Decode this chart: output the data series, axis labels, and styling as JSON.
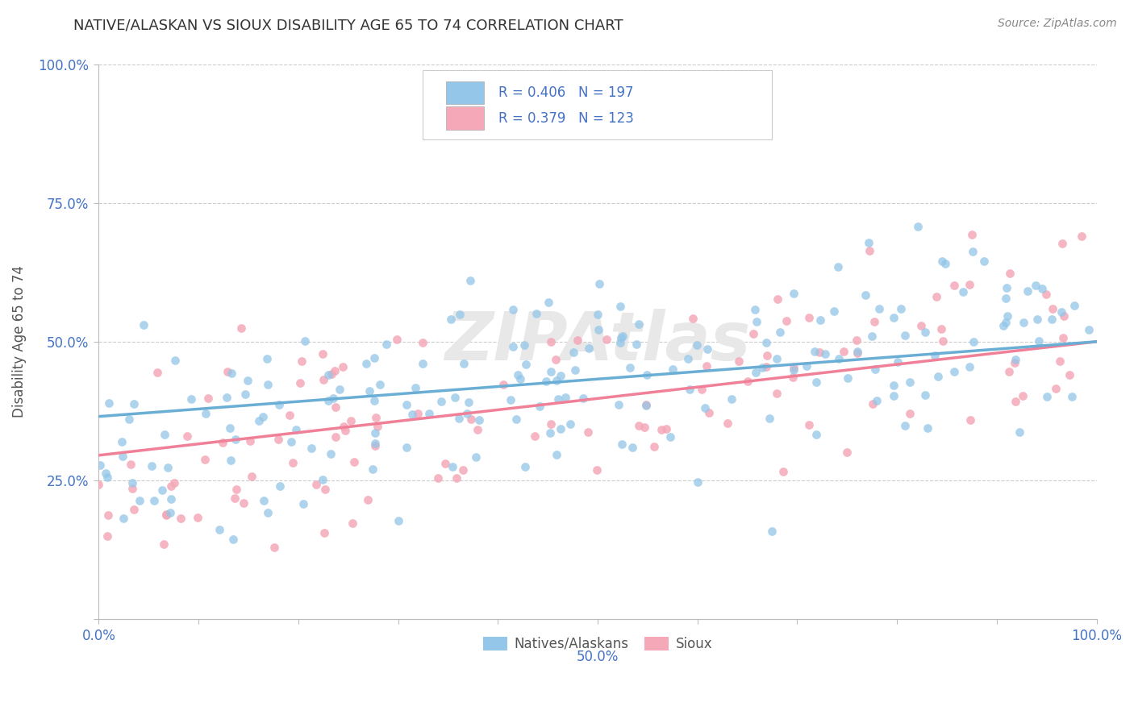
{
  "title": "NATIVE/ALASKAN VS SIOUX DISABILITY AGE 65 TO 74 CORRELATION CHART",
  "source": "Source: ZipAtlas.com",
  "ylabel": "Disability Age 65 to 74",
  "xlim": [
    0.0,
    1.0
  ],
  "ylim": [
    0.0,
    1.0
  ],
  "native_R": 0.406,
  "native_N": 197,
  "sioux_R": 0.379,
  "sioux_N": 123,
  "native_color": "#93c6e8",
  "sioux_color": "#f4a8b8",
  "legend_label_native": "Natives/Alaskans",
  "legend_label_sioux": "Sioux",
  "watermark": "ZIPAtlas",
  "background_color": "#ffffff",
  "grid_color": "#cccccc",
  "title_color": "#333333",
  "axis_label_color": "#555555",
  "tick_color": "#4472c4",
  "legend_value_color": "#4472c4",
  "native_line_intercept": 0.365,
  "native_line_slope": 0.135,
  "sioux_line_intercept": 0.295,
  "sioux_line_slope": 0.205
}
